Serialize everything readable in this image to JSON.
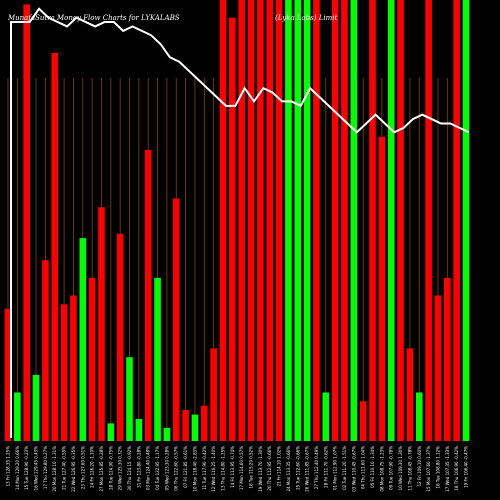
{
  "chart_data": {
    "type": "bar",
    "title": "MunafaSutra  Money Flow  Charts for LYKALABS",
    "subtitle": "(Lyka Labs) Limit",
    "colors": {
      "background": "#000000",
      "up": "#00ff00",
      "down": "#ff0000",
      "line": "#ffffff",
      "grid": "#8b4500",
      "text": "#ffffff"
    },
    "grid": true,
    "ylim": [
      0,
      100
    ],
    "price_ylim": [
      0,
      100
    ],
    "categories": [
      "13 Fri",
      "14 Mon",
      "15 Tue",
      "16 Wed",
      "17 Thu",
      "20 Mon",
      "21 Tue",
      "22 Wed",
      "23 Thu",
      "24 Fri",
      "27 Mon",
      "28 Tue",
      "29 Wed",
      "30 Thu",
      "31 Fri",
      "03 Mon",
      "04 Tue",
      "05 Wed",
      "06 Thu",
      "07 Fri",
      "10 Mon",
      "11 Tue",
      "12 Wed",
      "13 Thu",
      "14 Fri",
      "17 Mon",
      "18 Tue",
      "19 Wed",
      "20 Thu",
      "21 Fri",
      "24 Mon",
      "25 Tue",
      "26 Wed",
      "27 Thu",
      "28 Fri",
      "01 Mon",
      "02 Tue",
      "03 Wed",
      "04 Thu",
      "05 Fri",
      "08 Mon",
      "09 Tue",
      "10 Wed",
      "11 Thu",
      "12 Fri",
      "15 Mon",
      "16 Tue",
      "17 Wed",
      "18 Thu",
      "19 Fri"
    ],
    "tick_labels": [
      "13 Fri 128.35 1.25%",
      "14 Mon 129.20 0.66%",
      "15 Tue 128.90 -0.23%",
      "16 Wed 129.45 0.43%",
      "17 Thu 129.80 0.27%",
      "20 Mon 128.10 -1.31%",
      "21 Tue 127.40 -0.55%",
      "22 Wed 126.95 -0.35%",
      "23 Thu 127.60 0.51%",
      "24 Fri 126.20 -1.10%",
      "27 Mon 125.85 -0.28%",
      "28 Tue 124.90 -0.75%",
      "29 Wed 125.30 0.32%",
      "30 Thu 124.15 -0.92%",
      "31 Fri 123.80 -0.28%",
      "03 Mon 124.40 0.48%",
      "04 Tue 122.95 -1.17%",
      "05 Wed 123.30 0.28%",
      "06 Thu 122.60 -0.57%",
      "07 Fri 121.85 -0.61%",
      "10 Mon 118.40 -2.83%",
      "11 Tue 117.90 -0.42%",
      "12 Wed 116.25 -1.40%",
      "13 Thu 114.80 -1.25%",
      "14 Fri 113.95 -0.74%",
      "17 Mon 114.60 0.57%",
      "18 Tue 115.20 0.52%",
      "19 Wed 113.70 -1.30%",
      "20 Thu 112.95 -0.66%",
      "21 Fri 114.10 1.02%",
      "24 Mon 113.35 -0.66%",
      "25 Tue 112.60 -0.66%",
      "26 Wed 111.85 -0.67%",
      "27 Thu 112.40 0.49%",
      "28 Fri 111.70 -0.62%",
      "01 Mon 112.90 1.07%",
      "02 Tue 111.20 -1.51%",
      "03 Wed 110.45 -0.67%",
      "04 Thu 111.60 1.04%",
      "05 Fri 110.10 -1.34%",
      "08 Mon 108.75 -1.23%",
      "09 Tue 107.90 -0.78%",
      "10 Wed 109.30 1.30%",
      "11 Thu 108.45 -0.78%",
      "12 Fri 109.10 0.60%",
      "15 Mon 107.60 -1.37%",
      "16 Tue 108.80 1.12%",
      "17 Wed 107.35 -1.33%",
      "18 Thu 106.90 -0.42%",
      "19 Fri 106.40 -0.47%"
    ],
    "series": [
      {
        "values": [
          30,
          11,
          99,
          15,
          41,
          88,
          31,
          33,
          46,
          37,
          53,
          4,
          47,
          19,
          5,
          66,
          37,
          3,
          55,
          7,
          6,
          8,
          21,
          100,
          96,
          100,
          100,
          100,
          100,
          100,
          100,
          100,
          100,
          100,
          11,
          100,
          100,
          100,
          9,
          100,
          69,
          100,
          100,
          21,
          11,
          100,
          33,
          37,
          100,
          100
        ],
        "directions": [
          "down",
          "up",
          "down",
          "up",
          "down",
          "down",
          "down",
          "down",
          "up",
          "down",
          "down",
          "up",
          "down",
          "up",
          "up",
          "down",
          "up",
          "up",
          "down",
          "down",
          "up",
          "down",
          "down",
          "down",
          "down",
          "down",
          "down",
          "down",
          "down",
          "down",
          "up",
          "up",
          "up",
          "down",
          "up",
          "down",
          "down",
          "up",
          "down",
          "down",
          "down",
          "up",
          "down",
          "down",
          "up",
          "down",
          "down",
          "down",
          "down",
          "up"
        ]
      },
      {
        "values": [
          95,
          95,
          95,
          98,
          96,
          95,
          94,
          96,
          95,
          94,
          95,
          95,
          93,
          94,
          93,
          92,
          90,
          87,
          86,
          84,
          82,
          80,
          78,
          76,
          76,
          80,
          77,
          80,
          79,
          77,
          77,
          76,
          80,
          78,
          76,
          74,
          72,
          70,
          72,
          74,
          72,
          70,
          71,
          73,
          74,
          73,
          72,
          72,
          71,
          70
        ]
      }
    ]
  }
}
